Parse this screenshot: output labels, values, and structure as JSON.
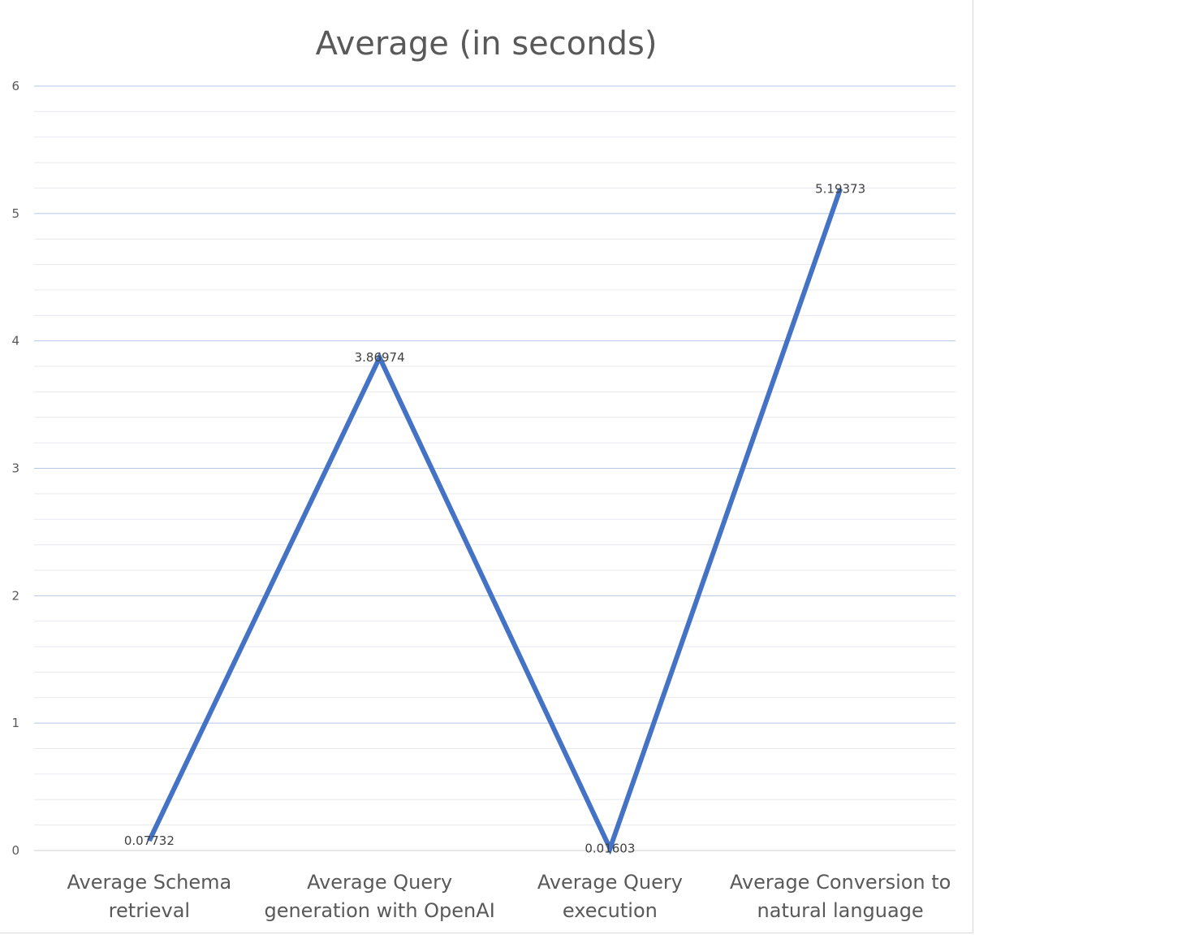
{
  "chart_data": {
    "type": "line",
    "title": "Average (in seconds)",
    "categories": [
      [
        "Average Schema",
        "retrieval"
      ],
      [
        "Average Query",
        "generation with OpenAI"
      ],
      [
        "Average Query",
        "execution"
      ],
      [
        "Average Conversion to",
        "natural language"
      ]
    ],
    "values": [
      0.07732,
      3.86974,
      0.01603,
      5.19373
    ],
    "data_labels": [
      "0.07732",
      "3.86974",
      "0.01603",
      "5.19373"
    ],
    "ylim": [
      0,
      6
    ],
    "yticks": [
      "0",
      "1",
      "2",
      "3",
      "4",
      "5",
      "6"
    ],
    "minor_grid_step": 0.2,
    "grid": true,
    "legend": "none",
    "colors": {
      "line": "#4472c4",
      "major_grid": "#b4c7e7",
      "minor_grid": "#e7eaf0",
      "text": "#595959"
    }
  }
}
